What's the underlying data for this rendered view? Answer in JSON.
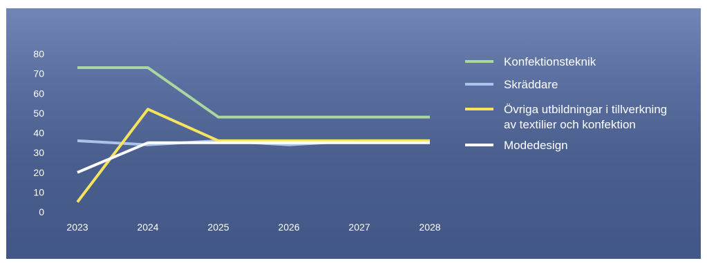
{
  "chart_data": {
    "type": "line",
    "x": [
      2023,
      2024,
      2025,
      2026,
      2027,
      2028
    ],
    "ylim": [
      0,
      80
    ],
    "y_ticks": [
      0,
      10,
      20,
      30,
      40,
      50,
      60,
      70,
      80
    ],
    "x_ticks": [
      "2023",
      "2024",
      "2025",
      "2026",
      "2027",
      "2028"
    ],
    "grid": false,
    "legend_position": "right",
    "background": "#4f6494",
    "series": [
      {
        "name": "Konfektionsteknik",
        "color": "#a8d8a0",
        "values": [
          73,
          73,
          48,
          48,
          48,
          48
        ]
      },
      {
        "name": "Skräddare",
        "color": "#a9c3ea",
        "values": [
          36,
          34,
          36,
          34,
          36,
          36
        ]
      },
      {
        "name": "Övriga utbildningar i tillverkning av textilier och konfektion",
        "name_lines": [
          "Övriga utbildningar i tillverkning",
          "av textilier och konfektion"
        ],
        "color": "#f5e45c",
        "values": [
          5,
          52,
          36,
          36,
          36,
          36
        ]
      },
      {
        "name": "Modedesign",
        "color": "#ffffff",
        "values": [
          20,
          35,
          35,
          35,
          35,
          35
        ]
      }
    ]
  }
}
